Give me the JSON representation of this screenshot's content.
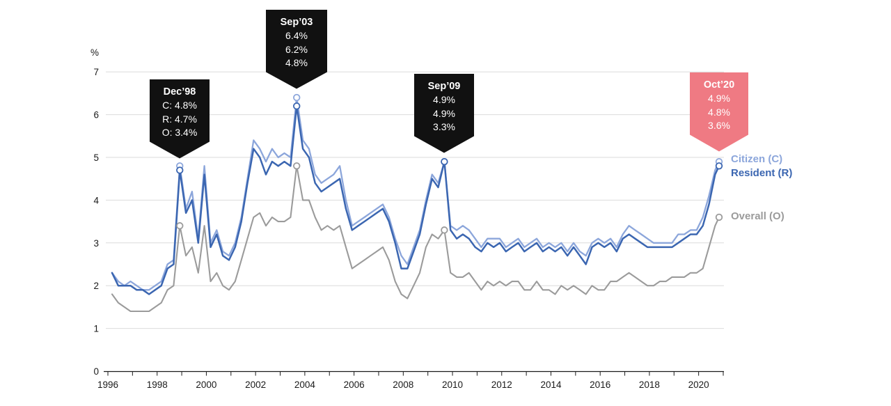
{
  "chart_data": {
    "type": "line",
    "title": "",
    "y_axis": {
      "unit_label": "%",
      "min": 0,
      "max": 7,
      "tick_labels": [
        "0",
        "1",
        "2",
        "3",
        "4",
        "5",
        "6",
        "7"
      ]
    },
    "x_axis": {
      "tick_start": 1996,
      "tick_end": 2021,
      "tick_labels": [
        "1996",
        "1998",
        "2000",
        "2002",
        "2004",
        "2006",
        "2008",
        "2010",
        "2012",
        "2014",
        "2016",
        "2018",
        "2020"
      ]
    },
    "grid": "horizontal",
    "grid_color": "#DBDBDB",
    "axis_color": "#1A1A1A",
    "text_color": "#1A1A1A",
    "x": [
      1996.17,
      1996.42,
      1996.67,
      1996.92,
      1997.17,
      1997.42,
      1997.67,
      1997.92,
      1998.17,
      1998.42,
      1998.67,
      1998.92,
      1999.17,
      1999.42,
      1999.67,
      1999.92,
      2000.17,
      2000.42,
      2000.67,
      2000.92,
      2001.17,
      2001.42,
      2001.67,
      2001.92,
      2002.17,
      2002.42,
      2002.67,
      2002.92,
      2003.17,
      2003.42,
      2003.67,
      2003.92,
      2004.17,
      2004.42,
      2004.67,
      2004.92,
      2005.17,
      2005.42,
      2005.67,
      2005.92,
      2006.17,
      2006.42,
      2006.67,
      2006.92,
      2007.17,
      2007.42,
      2007.67,
      2007.92,
      2008.17,
      2008.42,
      2008.67,
      2008.92,
      2009.17,
      2009.42,
      2009.67,
      2009.92,
      2010.17,
      2010.42,
      2010.67,
      2010.92,
      2011.17,
      2011.42,
      2011.67,
      2011.92,
      2012.17,
      2012.42,
      2012.67,
      2012.92,
      2013.17,
      2013.42,
      2013.67,
      2013.92,
      2014.17,
      2014.42,
      2014.67,
      2014.92,
      2015.17,
      2015.42,
      2015.67,
      2015.92,
      2016.17,
      2016.42,
      2016.67,
      2016.92,
      2017.17,
      2017.42,
      2017.67,
      2017.92,
      2018.17,
      2018.42,
      2018.67,
      2018.92,
      2019.17,
      2019.42,
      2019.67,
      2019.92,
      2020.17,
      2020.42,
      2020.67,
      2020.83
    ],
    "series": [
      {
        "name": "citizen",
        "label": "Citizen (C)",
        "color": "#8CA6DB",
        "values": [
          2.3,
          2.1,
          2.0,
          2.1,
          2.0,
          1.9,
          1.9,
          2.0,
          2.1,
          2.5,
          2.6,
          4.8,
          3.8,
          4.2,
          3.1,
          4.8,
          3.0,
          3.3,
          2.8,
          2.7,
          3.0,
          3.6,
          4.5,
          5.4,
          5.2,
          4.9,
          5.2,
          5.0,
          5.1,
          5.0,
          6.4,
          5.4,
          5.2,
          4.6,
          4.4,
          4.5,
          4.6,
          4.8,
          4.0,
          3.4,
          3.5,
          3.6,
          3.7,
          3.8,
          3.9,
          3.6,
          3.1,
          2.7,
          2.5,
          2.9,
          3.3,
          4.0,
          4.6,
          4.4,
          4.9,
          3.4,
          3.3,
          3.4,
          3.3,
          3.1,
          2.9,
          3.1,
          3.1,
          3.1,
          2.9,
          3.0,
          3.1,
          2.9,
          3.0,
          3.1,
          2.9,
          3.0,
          2.9,
          3.0,
          2.8,
          3.0,
          2.8,
          2.7,
          3.0,
          3.1,
          3.0,
          3.1,
          2.9,
          3.2,
          3.4,
          3.3,
          3.2,
          3.1,
          3.0,
          3.0,
          3.0,
          3.0,
          3.2,
          3.2,
          3.3,
          3.3,
          3.6,
          4.1,
          4.7,
          4.9
        ]
      },
      {
        "name": "resident",
        "label": "Resident (R)",
        "color": "#3B66B1",
        "values": [
          2.3,
          2.0,
          2.0,
          2.0,
          1.9,
          1.9,
          1.8,
          1.9,
          2.0,
          2.4,
          2.5,
          4.7,
          3.7,
          4.0,
          3.0,
          4.6,
          2.9,
          3.2,
          2.7,
          2.6,
          2.9,
          3.5,
          4.4,
          5.2,
          5.0,
          4.6,
          4.9,
          4.8,
          4.9,
          4.8,
          6.2,
          5.2,
          5.0,
          4.4,
          4.2,
          4.3,
          4.4,
          4.5,
          3.8,
          3.3,
          3.4,
          3.5,
          3.6,
          3.7,
          3.8,
          3.5,
          3.0,
          2.4,
          2.4,
          2.8,
          3.2,
          3.9,
          4.5,
          4.3,
          4.9,
          3.3,
          3.1,
          3.2,
          3.1,
          2.9,
          2.8,
          3.0,
          2.9,
          3.0,
          2.8,
          2.9,
          3.0,
          2.8,
          2.9,
          3.0,
          2.8,
          2.9,
          2.8,
          2.9,
          2.7,
          2.9,
          2.7,
          2.5,
          2.9,
          3.0,
          2.9,
          3.0,
          2.8,
          3.1,
          3.2,
          3.1,
          3.0,
          2.9,
          2.9,
          2.9,
          2.9,
          2.9,
          3.0,
          3.1,
          3.2,
          3.2,
          3.4,
          3.9,
          4.6,
          4.8
        ]
      },
      {
        "name": "overall",
        "label": "Overall (O)",
        "color": "#9B9B9B",
        "values": [
          1.8,
          1.6,
          1.5,
          1.4,
          1.4,
          1.4,
          1.4,
          1.5,
          1.6,
          1.9,
          2.0,
          3.4,
          2.7,
          2.9,
          2.3,
          3.4,
          2.1,
          2.3,
          2.0,
          1.9,
          2.1,
          2.6,
          3.1,
          3.6,
          3.7,
          3.4,
          3.6,
          3.5,
          3.5,
          3.6,
          4.8,
          4.0,
          4.0,
          3.6,
          3.3,
          3.4,
          3.3,
          3.4,
          2.9,
          2.4,
          2.5,
          2.6,
          2.7,
          2.8,
          2.9,
          2.6,
          2.1,
          1.8,
          1.7,
          2.0,
          2.3,
          2.9,
          3.2,
          3.1,
          3.3,
          2.3,
          2.2,
          2.2,
          2.3,
          2.1,
          1.9,
          2.1,
          2.0,
          2.1,
          2.0,
          2.1,
          2.1,
          1.9,
          1.9,
          2.1,
          1.9,
          1.9,
          1.8,
          2.0,
          1.9,
          2.0,
          1.9,
          1.8,
          2.0,
          1.9,
          1.9,
          2.1,
          2.1,
          2.2,
          2.3,
          2.2,
          2.1,
          2.0,
          2.0,
          2.1,
          2.1,
          2.2,
          2.2,
          2.2,
          2.3,
          2.3,
          2.4,
          2.9,
          3.4,
          3.6
        ]
      }
    ],
    "annotations": [
      {
        "title": "Dec’98",
        "values": [
          "C: 4.8%",
          "R: 4.7%",
          "O: 3.4%"
        ],
        "x": 1998.92,
        "markers": [
          4.8,
          4.7,
          3.4
        ],
        "color": "#111111"
      },
      {
        "title": "Sep’03",
        "values": [
          "6.4%",
          "6.2%",
          "4.8%"
        ],
        "x": 2003.67,
        "markers": [
          6.4,
          6.2,
          4.8
        ],
        "color": "#111111"
      },
      {
        "title": "Sep’09",
        "values": [
          "4.9%",
          "4.9%",
          "3.3%"
        ],
        "x": 2009.67,
        "markers": [
          4.9,
          4.9,
          3.3
        ],
        "color": "#111111"
      },
      {
        "title": "Oct’20",
        "values": [
          "4.9%",
          "4.8%",
          "3.6%"
        ],
        "x": 2020.83,
        "markers": [
          4.9,
          4.8,
          3.6
        ],
        "color": "#EF7A83"
      }
    ],
    "legend_position": "right-end-of-lines"
  }
}
